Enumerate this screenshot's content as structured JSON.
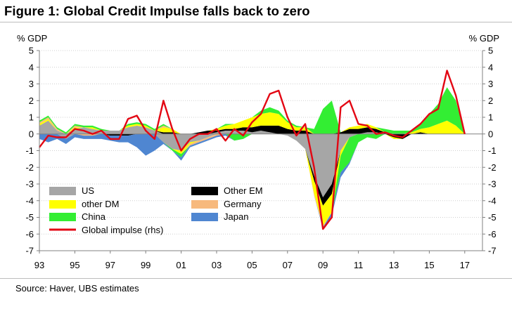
{
  "figure_title": "Figure 1: Global Credit Impulse falls back to zero",
  "source_text": "Source:  Haver, UBS estimates",
  "chart_data": {
    "type": "area",
    "title": "Figure 1: Global Credit Impulse falls back to zero",
    "ylabel_left": "% GDP",
    "ylabel_right": "% GDP",
    "ylim_left": [
      -7,
      5
    ],
    "ylim_right": [
      -7,
      5
    ],
    "yticks": [
      5,
      4,
      3,
      2,
      1,
      0,
      -1,
      -2,
      -3,
      -4,
      -5,
      -6,
      -7
    ],
    "xlim": [
      1993,
      2018
    ],
    "xticks": [
      {
        "x": 1993,
        "label": "93"
      },
      {
        "x": 1995,
        "label": "95"
      },
      {
        "x": 1997,
        "label": "97"
      },
      {
        "x": 1999,
        "label": "99"
      },
      {
        "x": 2001,
        "label": "01"
      },
      {
        "x": 2003,
        "label": "03"
      },
      {
        "x": 2005,
        "label": "05"
      },
      {
        "x": 2007,
        "label": "07"
      },
      {
        "x": 2009,
        "label": "09"
      },
      {
        "x": 2011,
        "label": "11"
      },
      {
        "x": 2013,
        "label": "13"
      },
      {
        "x": 2015,
        "label": "15"
      },
      {
        "x": 2017,
        "label": "17"
      }
    ],
    "grid": true,
    "legend_placement": "bottom-left",
    "stacked": true,
    "x": [
      1993.0,
      1993.5,
      1994.0,
      1994.5,
      1995.0,
      1995.5,
      1996.0,
      1996.5,
      1997.0,
      1997.5,
      1998.0,
      1998.5,
      1999.0,
      1999.5,
      2000.0,
      2000.5,
      2001.0,
      2001.5,
      2002.0,
      2002.5,
      2003.0,
      2003.5,
      2004.0,
      2004.5,
      2005.0,
      2005.5,
      2006.0,
      2006.5,
      2007.0,
      2007.5,
      2008.0,
      2008.5,
      2009.0,
      2009.5,
      2010.0,
      2010.5,
      2011.0,
      2011.5,
      2012.0,
      2012.5,
      2013.0,
      2013.5,
      2014.0,
      2014.5,
      2015.0,
      2015.5,
      2016.0,
      2016.5,
      2017.0
    ],
    "series": [
      {
        "name": "US",
        "kind": "area",
        "color": "#a6a6a6",
        "values": [
          0.5,
          0.8,
          0.2,
          -0.3,
          0.3,
          0.4,
          0.3,
          0.2,
          0.2,
          0.2,
          0.4,
          0.5,
          0.4,
          0.2,
          -0.5,
          -0.9,
          -1.0,
          -0.5,
          -0.4,
          -0.2,
          0.1,
          0.2,
          0.2,
          0.2,
          0.1,
          0.2,
          0.1,
          0.0,
          -0.1,
          -0.4,
          -0.9,
          -2.5,
          -3.8,
          -3.0,
          -1.0,
          -0.2,
          0.0,
          0.1,
          0.1,
          0.0,
          0.0,
          0.0,
          0.0,
          0.0,
          0.0,
          0.0,
          0.0,
          0.0,
          0.0
        ]
      },
      {
        "name": "Other EM",
        "kind": "area",
        "color": "#000000",
        "values": [
          0.0,
          0.0,
          0.0,
          0.0,
          0.0,
          0.0,
          0.0,
          0.0,
          -0.1,
          -0.1,
          -0.1,
          0.0,
          0.0,
          0.0,
          0.1,
          0.1,
          0.0,
          0.0,
          0.1,
          0.2,
          0.1,
          0.1,
          0.1,
          0.2,
          0.3,
          0.3,
          0.4,
          0.5,
          0.3,
          0.2,
          0.2,
          -0.3,
          -0.5,
          -0.6,
          0.1,
          0.3,
          0.3,
          0.3,
          0.2,
          0.1,
          -0.2,
          -0.3,
          0.0,
          0.1,
          0.0,
          0.0,
          0.0,
          0.0,
          0.0
        ]
      },
      {
        "name": "other DM",
        "kind": "area",
        "color": "#ffff00",
        "values": [
          0.1,
          0.1,
          0.0,
          0.0,
          0.1,
          0.0,
          0.1,
          0.0,
          0.0,
          0.0,
          0.1,
          0.1,
          0.1,
          0.0,
          0.3,
          0.2,
          -0.2,
          -0.1,
          0.0,
          0.0,
          0.1,
          0.2,
          0.3,
          0.4,
          0.6,
          0.7,
          0.8,
          0.7,
          0.4,
          0.2,
          0.2,
          -0.8,
          -1.2,
          -1.1,
          -0.3,
          0.1,
          0.2,
          0.2,
          0.1,
          0.0,
          -0.1,
          0.0,
          0.1,
          0.2,
          0.4,
          0.6,
          0.8,
          0.5,
          0.0
        ]
      },
      {
        "name": "Germany",
        "kind": "area",
        "color": "#f7b97d",
        "values": [
          0.1,
          0.1,
          0.1,
          0.0,
          0.1,
          -0.1,
          -0.1,
          0.0,
          0.0,
          0.0,
          0.0,
          0.0,
          0.0,
          0.0,
          0.1,
          0.0,
          0.0,
          -0.1,
          -0.1,
          -0.1,
          -0.1,
          0.0,
          0.0,
          0.0,
          0.0,
          0.0,
          0.0,
          0.0,
          0.0,
          0.0,
          0.0,
          -0.1,
          -0.1,
          0.0,
          0.0,
          0.0,
          0.0,
          0.0,
          0.0,
          0.0,
          0.0,
          0.0,
          0.0,
          0.0,
          0.0,
          0.0,
          0.0,
          0.0,
          0.0
        ]
      },
      {
        "name": "China",
        "kind": "area",
        "color": "#33ee33",
        "values": [
          0.1,
          0.1,
          0.1,
          0.1,
          0.1,
          0.1,
          0.1,
          0.1,
          0.0,
          0.0,
          0.1,
          0.1,
          0.1,
          0.1,
          0.1,
          -0.1,
          -0.2,
          0.0,
          0.0,
          0.0,
          0.0,
          0.1,
          -0.4,
          -0.3,
          0.0,
          0.2,
          0.3,
          0.2,
          0.1,
          0.1,
          0.0,
          0.3,
          1.5,
          2.0,
          -1.0,
          -1.5,
          -0.5,
          -0.2,
          -0.3,
          0.2,
          0.2,
          0.2,
          0.1,
          0.3,
          0.8,
          1.2,
          2.0,
          1.5,
          0.0
        ]
      },
      {
        "name": "Japan",
        "kind": "area",
        "color": "#4f86d1",
        "values": [
          -0.3,
          -0.5,
          -0.3,
          -0.3,
          -0.2,
          -0.2,
          -0.2,
          -0.3,
          -0.3,
          -0.4,
          -0.4,
          -0.8,
          -1.3,
          -1.0,
          -0.1,
          0.0,
          -0.2,
          -0.1,
          -0.1,
          -0.1,
          -0.1,
          -0.1,
          0.0,
          0.0,
          0.0,
          0.0,
          0.0,
          0.0,
          0.0,
          0.0,
          0.0,
          0.0,
          -0.1,
          -0.2,
          -0.3,
          -0.1,
          0.0,
          0.0,
          0.0,
          0.0,
          0.0,
          0.0,
          0.0,
          0.0,
          0.0,
          0.0,
          0.0,
          0.0,
          0.0
        ]
      },
      {
        "name": "Global impulse (rhs)",
        "kind": "line",
        "axis": "right",
        "color": "#e30613",
        "values": [
          -0.8,
          -0.1,
          -0.2,
          -0.2,
          0.3,
          0.2,
          0.0,
          0.2,
          -0.3,
          -0.3,
          0.9,
          1.1,
          0.2,
          -0.3,
          2.0,
          0.3,
          -1.0,
          -0.3,
          0.0,
          0.0,
          0.3,
          -0.4,
          0.3,
          -0.1,
          0.7,
          1.2,
          2.4,
          2.6,
          1.0,
          -0.1,
          0.6,
          -2.0,
          -5.7,
          -5.0,
          1.6,
          2.0,
          0.6,
          0.5,
          0.0,
          0.1,
          -0.1,
          -0.2,
          0.2,
          0.6,
          1.2,
          1.5,
          3.8,
          2.3,
          0.0
        ]
      }
    ],
    "legend": [
      {
        "name": "US",
        "swatch": "box",
        "color": "#a6a6a6"
      },
      {
        "name": "Other EM",
        "swatch": "box",
        "color": "#000000"
      },
      {
        "name": "other DM",
        "swatch": "box",
        "color": "#ffff00"
      },
      {
        "name": "Germany",
        "swatch": "box",
        "color": "#f7b97d"
      },
      {
        "name": "China",
        "swatch": "box",
        "color": "#33ee33"
      },
      {
        "name": "Japan",
        "swatch": "box",
        "color": "#4f86d1"
      },
      {
        "name": "Global impulse (rhs)",
        "swatch": "line",
        "color": "#e30613"
      }
    ]
  }
}
